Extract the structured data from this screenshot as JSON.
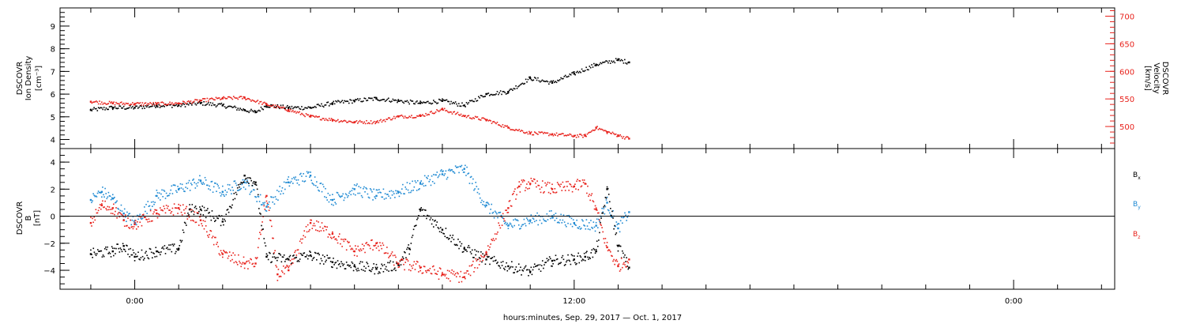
{
  "chart_data": [
    {
      "type": "scatter",
      "panel": "top",
      "left_axis": {
        "label_lines": [
          "DSCOVR",
          "Ion Density"
        ],
        "unit": "[cm⁻³]",
        "ylim": [
          3.6,
          9.8
        ],
        "ticks": [
          "4",
          "5",
          "6",
          "7",
          "8",
          "9"
        ],
        "color": "#000000"
      },
      "right_axis": {
        "label_lines": [
          "DSCOVR",
          "Velocity"
        ],
        "unit": "[km/s]",
        "ylim": [
          460,
          715
        ],
        "ticks": [
          "500",
          "550",
          "600",
          "650",
          "700"
        ],
        "color": "#e8221c"
      },
      "series": [
        {
          "axis": "left",
          "color": "#000000",
          "x": [
            -2.0,
            -1.0,
            0.0,
            1.0,
            2.0,
            3.0,
            4.0,
            5.0,
            5.5,
            6.0,
            7.0,
            8.0,
            9.0,
            10.0,
            11.0,
            12.0,
            13.0,
            14.0,
            15.0,
            16.0,
            17.0,
            18.0,
            19.0,
            20.0,
            21.0,
            22.0,
            22.5
          ],
          "y": [
            5.3,
            5.4,
            5.4,
            5.5,
            5.5,
            5.6,
            5.5,
            5.3,
            5.2,
            5.5,
            5.4,
            5.4,
            5.6,
            5.7,
            5.8,
            5.7,
            5.6,
            5.7,
            5.5,
            6.0,
            6.1,
            6.7,
            6.5,
            6.9,
            7.3,
            7.5,
            7.4
          ]
        },
        {
          "axis": "right",
          "color": "#e8221c",
          "x": [
            -2.0,
            -1.0,
            0.0,
            1.0,
            2.0,
            3.0,
            4.0,
            5.0,
            6.0,
            7.0,
            8.0,
            9.0,
            10.0,
            11.0,
            12.0,
            13.0,
            14.0,
            15.0,
            16.0,
            17.0,
            18.0,
            19.0,
            20.0,
            20.5,
            21.0,
            21.5,
            22.0,
            22.5
          ],
          "y": [
            545,
            542,
            541,
            541,
            542,
            547,
            551,
            552,
            540,
            530,
            518,
            512,
            508,
            508,
            518,
            519,
            531,
            519,
            512,
            498,
            488,
            486,
            483,
            483,
            498,
            490,
            484,
            478
          ]
        }
      ]
    },
    {
      "type": "scatter",
      "panel": "bottom",
      "left_axis": {
        "label_lines": [
          "DSCOVR",
          "B"
        ],
        "unit": "[nT]",
        "ylim": [
          -5.4,
          5.0
        ],
        "ticks": [
          "4",
          "2",
          "0",
          "−2",
          "−4"
        ],
        "tick_values": [
          4,
          2,
          0,
          -2,
          -4
        ]
      },
      "zero_line": 0,
      "series": [
        {
          "name": "B",
          "subscript": "x",
          "color": "#000000",
          "x": [
            -2.0,
            -1.0,
            -0.5,
            0.0,
            1.0,
            2.0,
            2.5,
            3.0,
            4.0,
            5.0,
            5.5,
            6.0,
            7.0,
            8.0,
            9.0,
            10.0,
            11.0,
            12.0,
            12.5,
            13.0,
            14.0,
            15.0,
            16.0,
            17.0,
            18.0,
            19.0,
            20.0,
            20.5,
            21.0,
            21.5,
            22.0,
            22.5
          ],
          "y": [
            -2.8,
            -2.6,
            -2.2,
            -3.0,
            -2.6,
            -2.4,
            0.5,
            0.5,
            -0.4,
            3.0,
            2.5,
            -3.0,
            -3.2,
            -2.9,
            -3.4,
            -3.7,
            -3.9,
            -3.6,
            -2.4,
            0.5,
            -1.0,
            -2.4,
            -3.2,
            -3.7,
            -4.1,
            -3.3,
            -3.2,
            -3.0,
            -2.6,
            2.0,
            -2.2,
            -3.8
          ]
        },
        {
          "name": "B",
          "subscript": "y",
          "color": "#1f8ad3",
          "x": [
            -2.0,
            -1.5,
            -1.0,
            -0.5,
            0.0,
            1.0,
            2.0,
            3.0,
            4.0,
            5.0,
            6.0,
            7.0,
            8.0,
            9.0,
            10.0,
            11.0,
            12.0,
            13.0,
            14.0,
            15.0,
            16.0,
            17.0,
            18.0,
            19.0,
            20.0,
            21.0,
            21.5,
            22.0,
            22.5
          ],
          "y": [
            1.2,
            1.8,
            1.3,
            0.2,
            -0.5,
            1.5,
            2.0,
            2.6,
            1.8,
            2.5,
            0.7,
            2.5,
            3.0,
            1.2,
            2.0,
            1.5,
            1.8,
            2.4,
            3.1,
            3.5,
            0.8,
            -0.7,
            -0.3,
            0.0,
            -0.5,
            -0.7,
            1.0,
            -0.9,
            0.3
          ]
        },
        {
          "name": "B",
          "subscript": "z",
          "color": "#e8221c",
          "x": [
            -2.0,
            -1.5,
            -1.0,
            -0.5,
            0.0,
            1.0,
            2.0,
            3.0,
            4.0,
            5.0,
            5.5,
            6.0,
            6.5,
            7.0,
            8.0,
            9.0,
            10.0,
            11.0,
            12.0,
            13.0,
            14.0,
            15.0,
            16.0,
            17.0,
            17.5,
            18.0,
            19.0,
            20.0,
            20.5,
            21.0,
            21.5,
            22.0,
            22.5
          ],
          "y": [
            -0.5,
            0.8,
            0.6,
            -0.3,
            -0.6,
            0.2,
            0.6,
            -0.3,
            -2.8,
            -3.5,
            -3.5,
            1.5,
            -4.3,
            -4.0,
            -0.5,
            -1.3,
            -2.6,
            -2.0,
            -3.5,
            -3.8,
            -4.3,
            -4.5,
            -2.7,
            0.6,
            2.2,
            2.4,
            2.0,
            2.2,
            2.4,
            0.5,
            -2.3,
            -3.7,
            -3.2
          ]
        }
      ],
      "legend_placement": "right"
    }
  ],
  "x_axis": {
    "xlim": [
      -3.4,
      44.6
    ],
    "tick_labels": [
      {
        "x": 0,
        "label": "0:00"
      },
      {
        "x": 20,
        "label": "12:00"
      },
      {
        "x": 40,
        "label": "0:00"
      }
    ],
    "minor_tick_values": [
      -2,
      2,
      4,
      6,
      8,
      10,
      12,
      14,
      16,
      18,
      22,
      24,
      26,
      28,
      30,
      32,
      34,
      36,
      38,
      42,
      44
    ],
    "label": "hours:minutes,  Sep. 29, 2017 —  Oct.  1, 2017"
  },
  "colors": {
    "frame": "#000000",
    "red": "#e8221c",
    "blue": "#1f8ad3"
  }
}
